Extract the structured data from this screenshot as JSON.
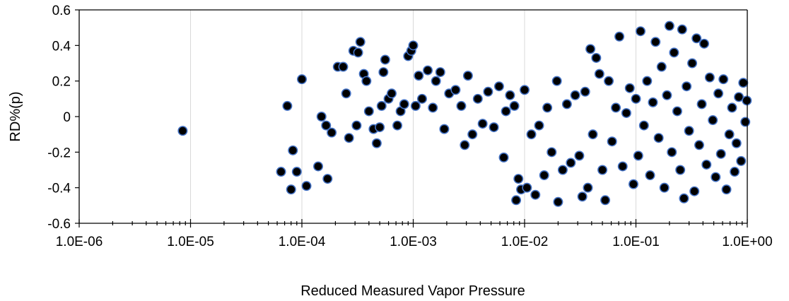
{
  "chart_data": {
    "type": "scatter",
    "title": "",
    "xlabel": "Reduced Measured Vapor Pressure",
    "ylabel": "RD%(p)",
    "x_scale": "log",
    "xlim": [
      1e-06,
      1
    ],
    "ylim": [
      -0.6,
      0.6
    ],
    "x_tick_labels": [
      "1.0E-06",
      "1.0E-05",
      "1.0E-04",
      "1.0E-03",
      "1.0E-02",
      "1.0E-01",
      "1.0E+00"
    ],
    "y_tick_labels": [
      "-0.6",
      "-0.4",
      "-0.2",
      "0",
      "0.2",
      "0.4",
      "0.6"
    ],
    "grid": "vertical major",
    "legend": "none",
    "marker_fill": "#000000",
    "marker_edge": "#4472c4",
    "points": [
      {
        "x": 8.5e-06,
        "y": -0.08
      },
      {
        "x": 6.5e-05,
        "y": -0.31
      },
      {
        "x": 7.4e-05,
        "y": 0.06
      },
      {
        "x": 8e-05,
        "y": -0.41
      },
      {
        "x": 8.3e-05,
        "y": -0.19
      },
      {
        "x": 9e-05,
        "y": -0.31
      },
      {
        "x": 0.0001,
        "y": 0.21
      },
      {
        "x": 0.00011,
        "y": -0.39
      },
      {
        "x": 0.00014,
        "y": -0.28
      },
      {
        "x": 0.00015,
        "y": 0.0
      },
      {
        "x": 0.000165,
        "y": -0.05
      },
      {
        "x": 0.00017,
        "y": -0.35
      },
      {
        "x": 0.000185,
        "y": -0.09
      },
      {
        "x": 0.00021,
        "y": 0.28
      },
      {
        "x": 0.000235,
        "y": 0.28
      },
      {
        "x": 0.00025,
        "y": 0.13
      },
      {
        "x": 0.000265,
        "y": -0.12
      },
      {
        "x": 0.00029,
        "y": 0.37
      },
      {
        "x": 0.00031,
        "y": -0.05
      },
      {
        "x": 0.00032,
        "y": 0.36
      },
      {
        "x": 0.000335,
        "y": 0.42
      },
      {
        "x": 0.00036,
        "y": 0.24
      },
      {
        "x": 0.00038,
        "y": 0.2
      },
      {
        "x": 0.0004,
        "y": 0.03
      },
      {
        "x": 0.00044,
        "y": -0.07
      },
      {
        "x": 0.00047,
        "y": -0.15
      },
      {
        "x": 0.0005,
        "y": -0.06
      },
      {
        "x": 0.00052,
        "y": 0.06
      },
      {
        "x": 0.00054,
        "y": 0.25
      },
      {
        "x": 0.00056,
        "y": 0.32
      },
      {
        "x": 0.0006,
        "y": 0.1
      },
      {
        "x": 0.00064,
        "y": 0.13
      },
      {
        "x": 0.00072,
        "y": -0.05
      },
      {
        "x": 0.00077,
        "y": 0.03
      },
      {
        "x": 0.00083,
        "y": 0.07
      },
      {
        "x": 0.0009,
        "y": 0.34
      },
      {
        "x": 0.00096,
        "y": 0.37
      },
      {
        "x": 0.001,
        "y": 0.4
      },
      {
        "x": 0.00105,
        "y": 0.06
      },
      {
        "x": 0.00112,
        "y": 0.23
      },
      {
        "x": 0.0012,
        "y": 0.1
      },
      {
        "x": 0.00135,
        "y": 0.26
      },
      {
        "x": 0.0015,
        "y": 0.05
      },
      {
        "x": 0.0016,
        "y": 0.2
      },
      {
        "x": 0.00175,
        "y": 0.25
      },
      {
        "x": 0.0019,
        "y": -0.07
      },
      {
        "x": 0.0021,
        "y": 0.13
      },
      {
        "x": 0.0024,
        "y": 0.15
      },
      {
        "x": 0.0027,
        "y": 0.06
      },
      {
        "x": 0.0029,
        "y": -0.16
      },
      {
        "x": 0.0031,
        "y": 0.23
      },
      {
        "x": 0.0034,
        "y": -0.1
      },
      {
        "x": 0.0038,
        "y": 0.1
      },
      {
        "x": 0.0042,
        "y": -0.04
      },
      {
        "x": 0.0047,
        "y": 0.14
      },
      {
        "x": 0.0053,
        "y": -0.06
      },
      {
        "x": 0.0059,
        "y": 0.17
      },
      {
        "x": 0.0065,
        "y": -0.23
      },
      {
        "x": 0.0068,
        "y": 0.03
      },
      {
        "x": 0.0074,
        "y": 0.12
      },
      {
        "x": 0.0081,
        "y": 0.06
      },
      {
        "x": 0.0084,
        "y": -0.47
      },
      {
        "x": 0.0088,
        "y": -0.35
      },
      {
        "x": 0.0093,
        "y": -0.41
      },
      {
        "x": 0.01,
        "y": 0.15
      },
      {
        "x": 0.0105,
        "y": -0.4
      },
      {
        "x": 0.0115,
        "y": -0.1
      },
      {
        "x": 0.0125,
        "y": -0.44
      },
      {
        "x": 0.0135,
        "y": -0.05
      },
      {
        "x": 0.015,
        "y": -0.33
      },
      {
        "x": 0.016,
        "y": 0.05
      },
      {
        "x": 0.0175,
        "y": -0.2
      },
      {
        "x": 0.0195,
        "y": 0.2
      },
      {
        "x": 0.02,
        "y": -0.48
      },
      {
        "x": 0.022,
        "y": -0.3
      },
      {
        "x": 0.024,
        "y": 0.07
      },
      {
        "x": 0.026,
        "y": -0.26
      },
      {
        "x": 0.0285,
        "y": 0.12
      },
      {
        "x": 0.031,
        "y": -0.22
      },
      {
        "x": 0.033,
        "y": -0.45
      },
      {
        "x": 0.035,
        "y": 0.14
      },
      {
        "x": 0.037,
        "y": -0.4
      },
      {
        "x": 0.039,
        "y": 0.38
      },
      {
        "x": 0.041,
        "y": -0.1
      },
      {
        "x": 0.044,
        "y": 0.33
      },
      {
        "x": 0.047,
        "y": 0.24
      },
      {
        "x": 0.05,
        "y": -0.3
      },
      {
        "x": 0.053,
        "y": -0.47
      },
      {
        "x": 0.057,
        "y": 0.2
      },
      {
        "x": 0.061,
        "y": -0.14
      },
      {
        "x": 0.066,
        "y": 0.05
      },
      {
        "x": 0.071,
        "y": 0.45
      },
      {
        "x": 0.076,
        "y": -0.28
      },
      {
        "x": 0.082,
        "y": 0.02
      },
      {
        "x": 0.088,
        "y": 0.16
      },
      {
        "x": 0.095,
        "y": -0.38
      },
      {
        "x": 0.1,
        "y": 0.1
      },
      {
        "x": 0.105,
        "y": -0.22
      },
      {
        "x": 0.11,
        "y": 0.48
      },
      {
        "x": 0.118,
        "y": -0.05
      },
      {
        "x": 0.126,
        "y": 0.2
      },
      {
        "x": 0.134,
        "y": -0.33
      },
      {
        "x": 0.142,
        "y": 0.08
      },
      {
        "x": 0.15,
        "y": 0.42
      },
      {
        "x": 0.16,
        "y": -0.12
      },
      {
        "x": 0.17,
        "y": 0.28
      },
      {
        "x": 0.18,
        "y": -0.4
      },
      {
        "x": 0.19,
        "y": 0.12
      },
      {
        "x": 0.2,
        "y": 0.51
      },
      {
        "x": 0.21,
        "y": -0.2
      },
      {
        "x": 0.22,
        "y": 0.36
      },
      {
        "x": 0.235,
        "y": 0.03
      },
      {
        "x": 0.25,
        "y": -0.3
      },
      {
        "x": 0.26,
        "y": 0.49
      },
      {
        "x": 0.27,
        "y": -0.46
      },
      {
        "x": 0.285,
        "y": 0.17
      },
      {
        "x": 0.3,
        "y": -0.08
      },
      {
        "x": 0.32,
        "y": 0.3
      },
      {
        "x": 0.335,
        "y": -0.42
      },
      {
        "x": 0.35,
        "y": 0.44
      },
      {
        "x": 0.37,
        "y": -0.16
      },
      {
        "x": 0.39,
        "y": 0.07
      },
      {
        "x": 0.41,
        "y": 0.41
      },
      {
        "x": 0.43,
        "y": -0.27
      },
      {
        "x": 0.46,
        "y": 0.22
      },
      {
        "x": 0.49,
        "y": -0.02
      },
      {
        "x": 0.52,
        "y": -0.34
      },
      {
        "x": 0.55,
        "y": 0.13
      },
      {
        "x": 0.58,
        "y": -0.21
      },
      {
        "x": 0.61,
        "y": 0.21
      },
      {
        "x": 0.65,
        "y": -0.41
      },
      {
        "x": 0.69,
        "y": -0.1
      },
      {
        "x": 0.73,
        "y": 0.05
      },
      {
        "x": 0.77,
        "y": -0.31
      },
      {
        "x": 0.8,
        "y": -0.15
      },
      {
        "x": 0.84,
        "y": 0.11
      },
      {
        "x": 0.88,
        "y": -0.25
      },
      {
        "x": 0.92,
        "y": 0.19
      },
      {
        "x": 0.96,
        "y": -0.03
      },
      {
        "x": 0.99,
        "y": 0.09
      }
    ]
  }
}
